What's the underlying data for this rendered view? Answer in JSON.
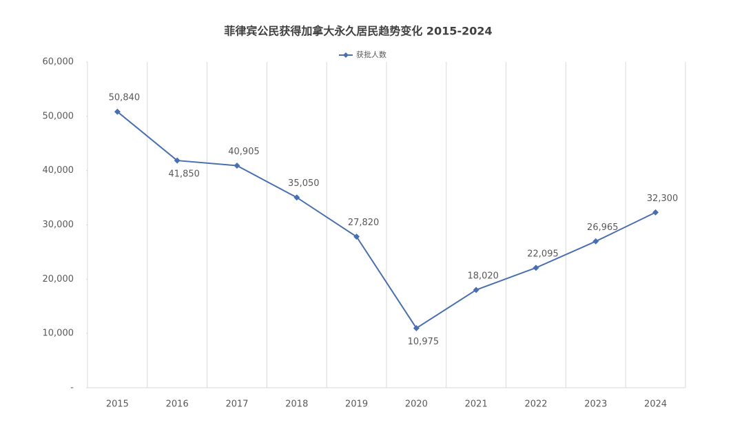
{
  "chart_data": {
    "type": "line",
    "title": "菲律宾公民获得加拿大永久居民趋势变化 2015-2024",
    "categories": [
      "2015",
      "2016",
      "2017",
      "2018",
      "2019",
      "2020",
      "2021",
      "2022",
      "2023",
      "2024"
    ],
    "series": [
      {
        "name": "获批人数",
        "color": "#4a6fb0",
        "values": [
          50840,
          41850,
          40905,
          35050,
          27820,
          10975,
          18020,
          22095,
          26965,
          32300
        ],
        "value_labels": [
          "50,840",
          "41,850",
          "40,905",
          "35,050",
          "27,820",
          "10,975",
          "18,020",
          "22,095",
          "26,965",
          "32,300"
        ]
      }
    ],
    "ylim": [
      0,
      60000
    ],
    "yticks": [
      {
        "value": 0,
        "label": "-"
      },
      {
        "value": 10000,
        "label": "10,000"
      },
      {
        "value": 20000,
        "label": "20,000"
      },
      {
        "value": 30000,
        "label": "30,000"
      },
      {
        "value": 40000,
        "label": "40,000"
      },
      {
        "value": 50000,
        "label": "50,000"
      },
      {
        "value": 60000,
        "label": "60,000"
      }
    ],
    "legend": "top"
  }
}
